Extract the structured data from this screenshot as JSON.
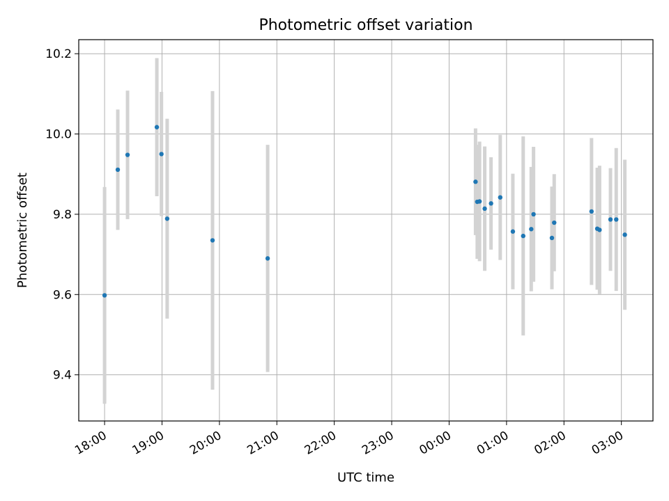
{
  "chart_data": {
    "type": "scatter",
    "title": "Photometric offset variation",
    "xlabel": "UTC time",
    "ylabel": "Photometric offset",
    "x_unit": "hours since 18:00 UTC",
    "xlim": [
      -0.45,
      9.55
    ],
    "ylim": [
      9.285,
      10.235
    ],
    "grid": true,
    "legend": "none",
    "colors": {
      "point": "#1f77b4",
      "errorbar": "#d3d3d3",
      "grid": "#b0b0b0",
      "axes": "#000000"
    },
    "xticks": [
      {
        "value": 0,
        "label": "18:00"
      },
      {
        "value": 1,
        "label": "19:00"
      },
      {
        "value": 2,
        "label": "20:00"
      },
      {
        "value": 3,
        "label": "21:00"
      },
      {
        "value": 4,
        "label": "22:00"
      },
      {
        "value": 5,
        "label": "23:00"
      },
      {
        "value": 6,
        "label": "00:00"
      },
      {
        "value": 7,
        "label": "01:00"
      },
      {
        "value": 8,
        "label": "02:00"
      },
      {
        "value": 9,
        "label": "03:00"
      }
    ],
    "yticks": [
      {
        "value": 9.4,
        "label": "9.4"
      },
      {
        "value": 9.6,
        "label": "9.6"
      },
      {
        "value": 9.8,
        "label": "9.8"
      },
      {
        "value": 10.0,
        "label": "10.0"
      },
      {
        "value": 10.2,
        "label": "10.2"
      }
    ],
    "points": [
      {
        "x": 0.0,
        "y": 9.598,
        "err": 0.27
      },
      {
        "x": 0.23,
        "y": 9.911,
        "err": 0.15
      },
      {
        "x": 0.4,
        "y": 9.948,
        "err": 0.16
      },
      {
        "x": 0.91,
        "y": 10.017,
        "err": 0.172
      },
      {
        "x": 0.99,
        "y": 9.95,
        "err": 0.155
      },
      {
        "x": 1.09,
        "y": 9.789,
        "err": 0.249
      },
      {
        "x": 1.88,
        "y": 9.735,
        "err": 0.372
      },
      {
        "x": 2.84,
        "y": 9.69,
        "err": 0.283
      },
      {
        "x": 6.46,
        "y": 9.881,
        "err": 0.133
      },
      {
        "x": 6.49,
        "y": 9.831,
        "err": 0.142
      },
      {
        "x": 6.53,
        "y": 9.832,
        "err": 0.149
      },
      {
        "x": 6.62,
        "y": 9.814,
        "err": 0.155
      },
      {
        "x": 6.73,
        "y": 9.827,
        "err": 0.115
      },
      {
        "x": 6.89,
        "y": 9.842,
        "err": 0.156
      },
      {
        "x": 7.11,
        "y": 9.757,
        "err": 0.144
      },
      {
        "x": 7.29,
        "y": 9.746,
        "err": 0.248
      },
      {
        "x": 7.43,
        "y": 9.763,
        "err": 0.155
      },
      {
        "x": 7.47,
        "y": 9.8,
        "err": 0.168
      },
      {
        "x": 7.79,
        "y": 9.741,
        "err": 0.128
      },
      {
        "x": 7.83,
        "y": 9.779,
        "err": 0.121
      },
      {
        "x": 8.48,
        "y": 9.807,
        "err": 0.183
      },
      {
        "x": 8.58,
        "y": 9.764,
        "err": 0.152
      },
      {
        "x": 8.62,
        "y": 9.761,
        "err": 0.16
      },
      {
        "x": 8.81,
        "y": 9.787,
        "err": 0.128
      },
      {
        "x": 8.91,
        "y": 9.787,
        "err": 0.178
      },
      {
        "x": 9.06,
        "y": 9.749,
        "err": 0.187
      }
    ]
  }
}
